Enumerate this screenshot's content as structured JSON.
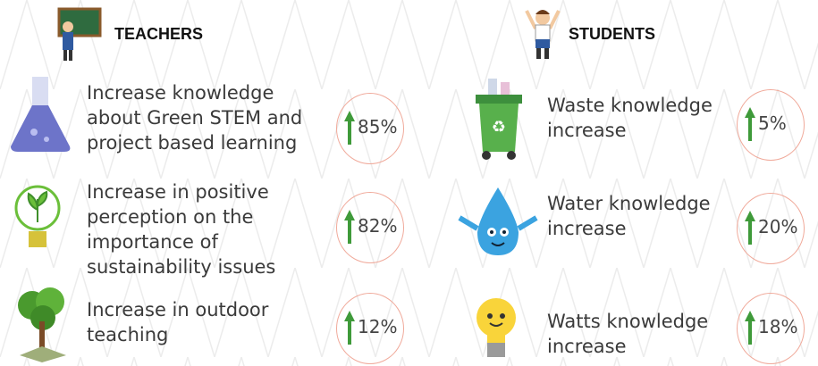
{
  "teachers": {
    "title": "TEACHERS",
    "items": [
      {
        "lines": [
          "Increase knowledge",
          "about Green STEM and",
          "project based learning"
        ],
        "value": "85%"
      },
      {
        "lines": [
          "Increase in positive",
          "perception on the",
          "importance of",
          "sustainability issues"
        ],
        "value": "82%"
      },
      {
        "lines": [
          "Increase in outdoor",
          "teaching"
        ],
        "value": "12%"
      }
    ]
  },
  "students": {
    "title": "STUDENTS",
    "items": [
      {
        "lines": [
          "Waste knowledge",
          "increase"
        ],
        "value": "5%"
      },
      {
        "lines": [
          "Water knowledge",
          "increase"
        ],
        "value": "20%"
      },
      {
        "lines": [
          "Watts knowledge",
          "increase"
        ],
        "value": "18%"
      }
    ]
  }
}
